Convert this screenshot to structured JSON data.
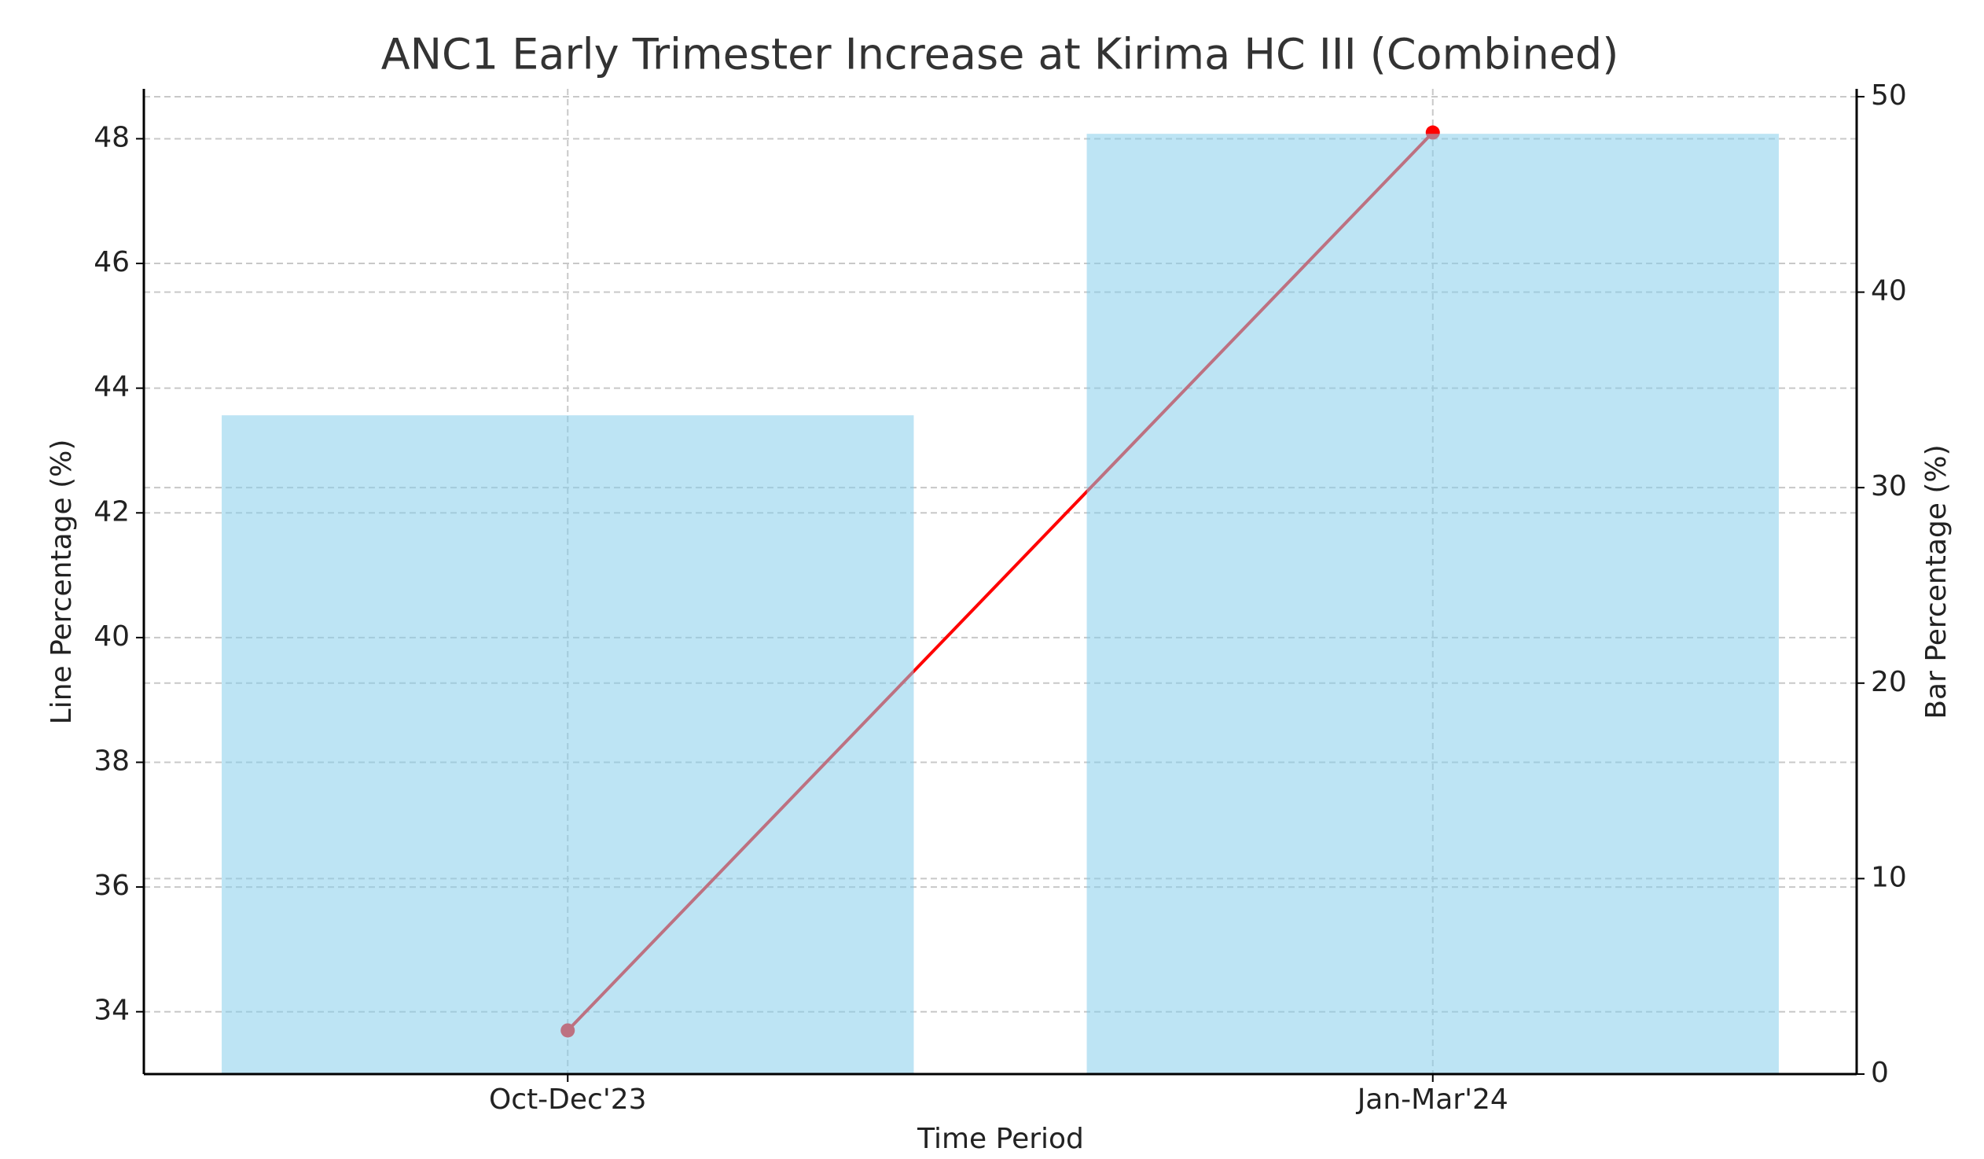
{
  "chart_data": {
    "type": "bar_line",
    "title": "ANC1 Early Trimester Increase at Kirima HC III (Combined)",
    "xlabel": "Time Period",
    "ylabel": "Line Percentage (%)",
    "y2label": "Bar Percentage (%)",
    "categories": [
      "Oct-Dec'23",
      "Jan-Mar'24"
    ],
    "series": [
      {
        "name": "Bar Percentage",
        "type": "bar",
        "axis": "y2",
        "color": "#87ceeb",
        "values": [
          33.7,
          48.1
        ]
      },
      {
        "name": "Line Percentage",
        "type": "line",
        "axis": "y",
        "color": "#ff0000",
        "values": [
          33.7,
          48.1
        ]
      }
    ],
    "ylim": [
      33.0,
      48.8
    ],
    "yticks": [
      34,
      36,
      38,
      40,
      42,
      44,
      46,
      48
    ],
    "y2lim": [
      0,
      50.4
    ],
    "y2ticks": [
      0,
      10,
      20,
      30,
      40,
      50
    ],
    "grid": true
  }
}
